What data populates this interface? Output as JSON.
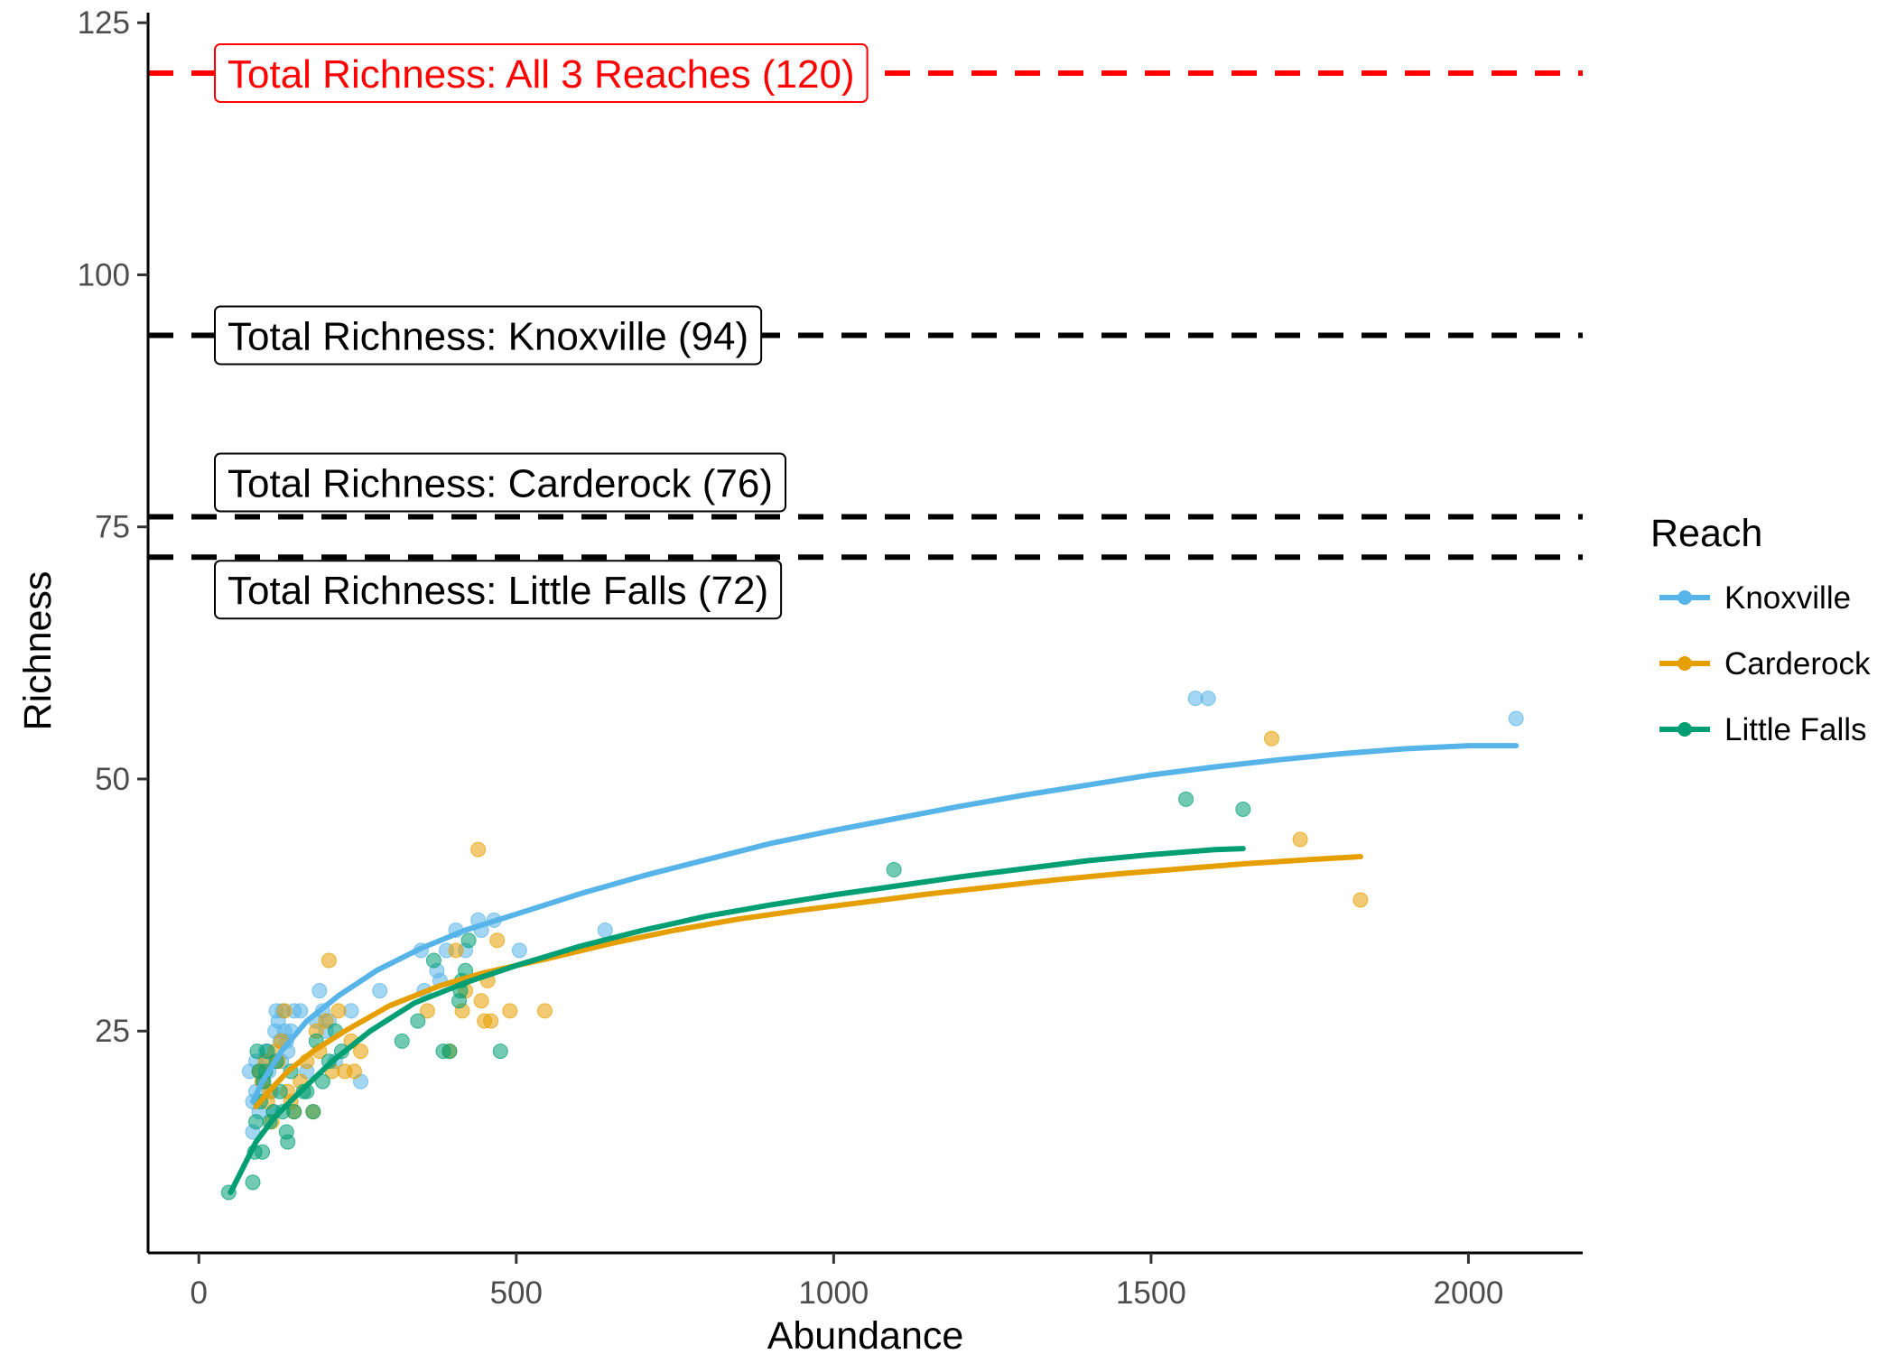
{
  "chart_data": {
    "type": "scatter",
    "xlabel": "Abundance",
    "ylabel": "Richness",
    "xlim": [
      -80,
      2180
    ],
    "ylim": [
      3,
      126
    ],
    "xticks": [
      0,
      500,
      1000,
      1500,
      2000
    ],
    "yticks": [
      25,
      50,
      75,
      100,
      125
    ],
    "grid": false,
    "legend": {
      "title": "Reach",
      "placement": "right",
      "entries": [
        "Knoxville",
        "Carderock",
        "Little Falls"
      ]
    },
    "reference_lines": [
      {
        "y": 120,
        "label": "Total Richness: All 3 Reaches (120)",
        "color": "#ff0000"
      },
      {
        "y": 94,
        "label": "Total Richness: Knoxville (94)",
        "color": "#000000"
      },
      {
        "y": 76,
        "label": "Total Richness: Carderock (76)",
        "color": "#000000"
      },
      {
        "y": 72,
        "label": "Total Richness: Little Falls (72)",
        "color": "#000000"
      }
    ],
    "series": [
      {
        "name": "Knoxville",
        "color": "#56B4E9",
        "points": [
          [
            80,
            21
          ],
          [
            85,
            18
          ],
          [
            85,
            15
          ],
          [
            90,
            19
          ],
          [
            90,
            22
          ],
          [
            95,
            17
          ],
          [
            95,
            21
          ],
          [
            100,
            20
          ],
          [
            105,
            22
          ],
          [
            105,
            23
          ],
          [
            110,
            21
          ],
          [
            115,
            19
          ],
          [
            118,
            17
          ],
          [
            120,
            25
          ],
          [
            122,
            27
          ],
          [
            125,
            26
          ],
          [
            128,
            24
          ],
          [
            130,
            22
          ],
          [
            132,
            27
          ],
          [
            135,
            25
          ],
          [
            138,
            24
          ],
          [
            140,
            23
          ],
          [
            145,
            25
          ],
          [
            150,
            27
          ],
          [
            160,
            27
          ],
          [
            170,
            21
          ],
          [
            185,
            26
          ],
          [
            190,
            29
          ],
          [
            195,
            27
          ],
          [
            200,
            25
          ],
          [
            205,
            26
          ],
          [
            215,
            22
          ],
          [
            240,
            27
          ],
          [
            255,
            20
          ],
          [
            285,
            29
          ],
          [
            350,
            33
          ],
          [
            355,
            29
          ],
          [
            375,
            31
          ],
          [
            380,
            30
          ],
          [
            390,
            33
          ],
          [
            405,
            35
          ],
          [
            420,
            33
          ],
          [
            440,
            36
          ],
          [
            445,
            35
          ],
          [
            465,
            36
          ],
          [
            505,
            33
          ],
          [
            640,
            35
          ],
          [
            1570,
            58
          ],
          [
            1590,
            58
          ],
          [
            2075,
            56
          ]
        ],
        "fit": [
          [
            85,
            18
          ],
          [
            100,
            20
          ],
          [
            130,
            23
          ],
          [
            170,
            26
          ],
          [
            220,
            28.5
          ],
          [
            280,
            31
          ],
          [
            350,
            33.2
          ],
          [
            420,
            35
          ],
          [
            500,
            36.6
          ],
          [
            600,
            38.6
          ],
          [
            700,
            40.4
          ],
          [
            800,
            42
          ],
          [
            900,
            43.6
          ],
          [
            1000,
            44.9
          ],
          [
            1100,
            46.1
          ],
          [
            1200,
            47.3
          ],
          [
            1300,
            48.4
          ],
          [
            1400,
            49.4
          ],
          [
            1500,
            50.4
          ],
          [
            1600,
            51.2
          ],
          [
            1700,
            51.9
          ],
          [
            1800,
            52.5
          ],
          [
            1900,
            53
          ],
          [
            2000,
            53.3
          ],
          [
            2075,
            53.3
          ]
        ]
      },
      {
        "name": "Carderock",
        "color": "#E69F00",
        "points": [
          [
            95,
            21
          ],
          [
            100,
            20
          ],
          [
            105,
            22
          ],
          [
            108,
            18
          ],
          [
            112,
            19
          ],
          [
            115,
            16
          ],
          [
            120,
            23
          ],
          [
            125,
            22
          ],
          [
            130,
            24
          ],
          [
            135,
            27
          ],
          [
            140,
            19
          ],
          [
            145,
            18
          ],
          [
            150,
            17
          ],
          [
            160,
            20
          ],
          [
            170,
            22
          ],
          [
            180,
            17
          ],
          [
            185,
            25
          ],
          [
            190,
            23
          ],
          [
            200,
            26
          ],
          [
            205,
            32
          ],
          [
            210,
            21
          ],
          [
            220,
            27
          ],
          [
            230,
            21
          ],
          [
            240,
            24
          ],
          [
            245,
            21
          ],
          [
            255,
            23
          ],
          [
            360,
            27
          ],
          [
            395,
            23
          ],
          [
            405,
            33
          ],
          [
            415,
            27
          ],
          [
            420,
            29
          ],
          [
            440,
            43
          ],
          [
            445,
            28
          ],
          [
            450,
            26
          ],
          [
            455,
            30
          ],
          [
            460,
            26
          ],
          [
            470,
            34
          ],
          [
            490,
            27
          ],
          [
            545,
            27
          ],
          [
            1690,
            54
          ],
          [
            1735,
            44
          ],
          [
            1830,
            38
          ]
        ],
        "fit": [
          [
            90,
            17.5
          ],
          [
            110,
            19
          ],
          [
            140,
            21
          ],
          [
            180,
            23
          ],
          [
            230,
            25
          ],
          [
            300,
            27.5
          ],
          [
            380,
            29.5
          ],
          [
            450,
            30.8
          ],
          [
            550,
            32.2
          ],
          [
            650,
            33.7
          ],
          [
            750,
            35
          ],
          [
            850,
            36.1
          ],
          [
            950,
            37
          ],
          [
            1050,
            37.8
          ],
          [
            1150,
            38.6
          ],
          [
            1250,
            39.3
          ],
          [
            1350,
            40
          ],
          [
            1450,
            40.6
          ],
          [
            1550,
            41.1
          ],
          [
            1650,
            41.6
          ],
          [
            1750,
            42
          ],
          [
            1830,
            42.3
          ]
        ]
      },
      {
        "name": "Little Falls",
        "color": "#009E73",
        "points": [
          [
            47,
            9
          ],
          [
            85,
            10
          ],
          [
            88,
            13
          ],
          [
            90,
            16
          ],
          [
            92,
            23
          ],
          [
            95,
            21
          ],
          [
            97,
            18
          ],
          [
            100,
            13
          ],
          [
            102,
            20
          ],
          [
            105,
            21
          ],
          [
            108,
            23
          ],
          [
            112,
            16
          ],
          [
            118,
            17
          ],
          [
            122,
            22
          ],
          [
            128,
            19
          ],
          [
            132,
            17
          ],
          [
            138,
            15
          ],
          [
            140,
            14
          ],
          [
            145,
            21
          ],
          [
            150,
            17
          ],
          [
            165,
            19
          ],
          [
            170,
            19
          ],
          [
            180,
            17
          ],
          [
            185,
            24
          ],
          [
            195,
            20
          ],
          [
            205,
            22
          ],
          [
            215,
            25
          ],
          [
            225,
            23
          ],
          [
            320,
            24
          ],
          [
            345,
            26
          ],
          [
            370,
            32
          ],
          [
            385,
            23
          ],
          [
            395,
            23
          ],
          [
            410,
            28
          ],
          [
            412,
            29
          ],
          [
            414,
            30
          ],
          [
            420,
            31
          ],
          [
            425,
            34
          ],
          [
            475,
            23
          ],
          [
            1095,
            41
          ],
          [
            1555,
            48
          ],
          [
            1645,
            47
          ]
        ],
        "fit": [
          [
            50,
            9
          ],
          [
            70,
            11.5
          ],
          [
            90,
            14
          ],
          [
            120,
            16.5
          ],
          [
            160,
            19
          ],
          [
            210,
            22
          ],
          [
            270,
            25
          ],
          [
            340,
            27.8
          ],
          [
            420,
            29.8
          ],
          [
            500,
            31.5
          ],
          [
            600,
            33.4
          ],
          [
            700,
            35
          ],
          [
            800,
            36.4
          ],
          [
            900,
            37.5
          ],
          [
            1000,
            38.5
          ],
          [
            1100,
            39.4
          ],
          [
            1200,
            40.3
          ],
          [
            1300,
            41.1
          ],
          [
            1400,
            41.9
          ],
          [
            1500,
            42.5
          ],
          [
            1600,
            43
          ],
          [
            1645,
            43.1
          ]
        ]
      }
    ]
  }
}
